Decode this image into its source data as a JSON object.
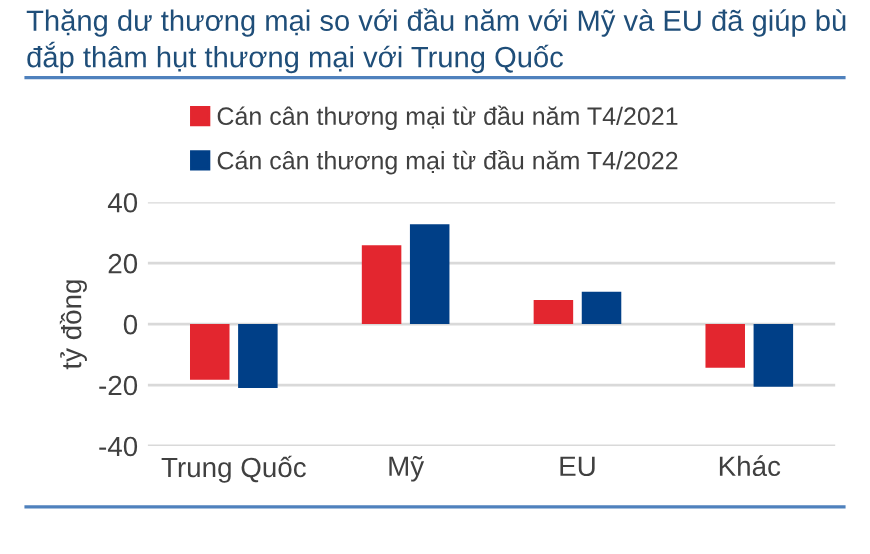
{
  "chart_data": {
    "type": "bar",
    "title": "Thặng dư thương mại so với đầu năm với Mỹ và EU đã giúp bù đắp thâm hụt thương mại với Trung Quốc",
    "ylabel": "tỷ đồng",
    "categories": [
      "Trung Quốc",
      "Mỹ",
      "EU",
      "Khác"
    ],
    "series": [
      {
        "name": "Cán cân thương mại từ đầu năm T4/2021",
        "color": "#e3262f",
        "values": [
          -18.3,
          25.9,
          7.9,
          -14.3
        ]
      },
      {
        "name": "Cán cân thương mại từ đầu năm T4/2022",
        "color": "#003f87",
        "values": [
          -21,
          32.8,
          10.6,
          -20.6
        ]
      }
    ],
    "ylim": [
      -40,
      40
    ],
    "yticks": [
      -40,
      -20,
      0,
      20,
      40
    ],
    "grid": "y",
    "legend": "top"
  }
}
